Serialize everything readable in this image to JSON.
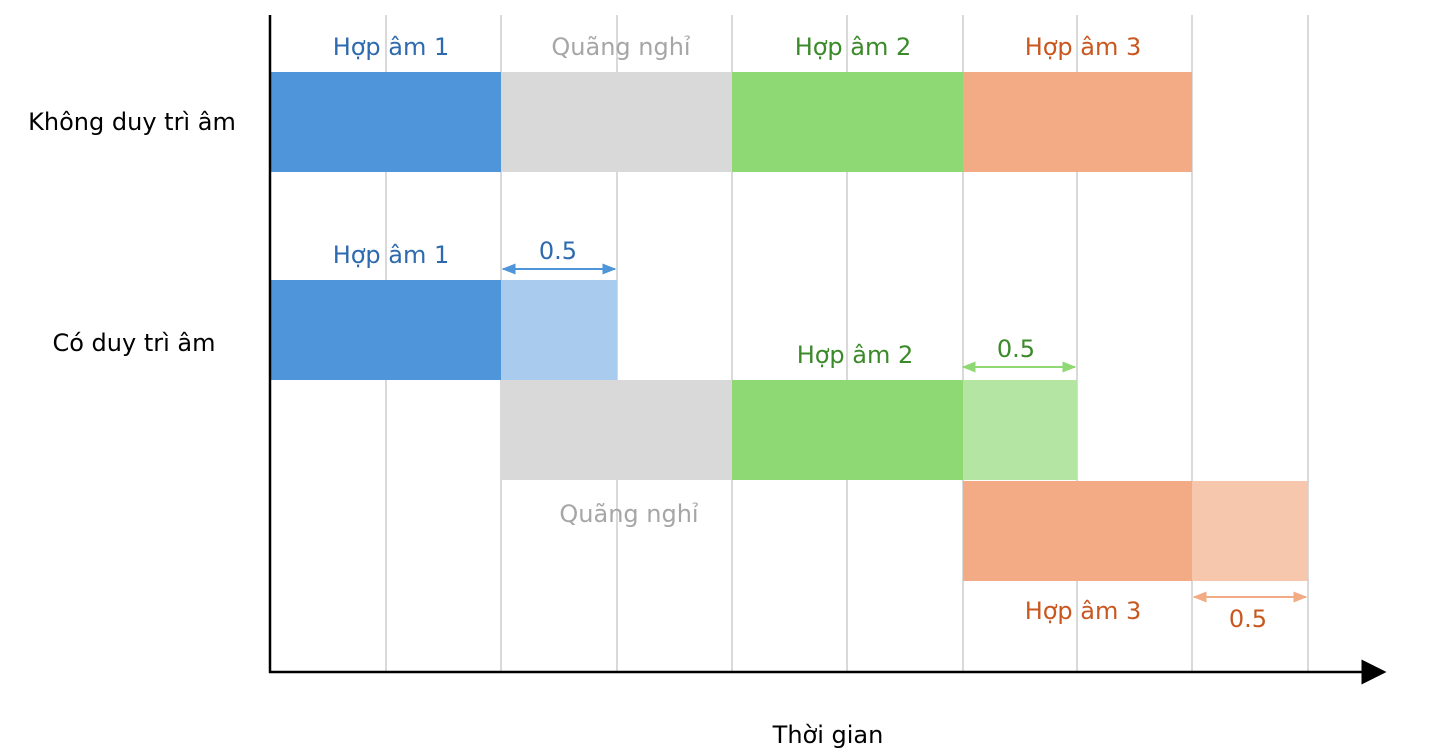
{
  "chart_data": {
    "type": "bar",
    "x_axis_label": "Thời gian",
    "unit_span_note": "each grid column = 0.5",
    "rows": [
      {
        "name": "Không duy trì âm",
        "segments": [
          {
            "label": "Hợp âm 1",
            "start": 0,
            "end": 1,
            "color": "#4f95da",
            "label_color": "#2e6aad"
          },
          {
            "label": "Quãng nghỉ",
            "start": 1,
            "end": 2,
            "color": "#d9d9d9",
            "label_color": "#a6a6a6"
          },
          {
            "label": "Hợp âm 2",
            "start": 2,
            "end": 3,
            "color": "#8fd974",
            "label_color": "#3b8a2a"
          },
          {
            "label": "Hợp âm 3",
            "start": 3,
            "end": 4,
            "color": "#f2ab84",
            "label_color": "#c8581f"
          }
        ]
      },
      {
        "name": "Có duy trì âm",
        "segments": [
          {
            "label": "Hợp âm 1",
            "start": 0,
            "end": 1,
            "sustain": 0.5,
            "color": "#4f95da",
            "sustain_color": "#a9cbee",
            "label_color": "#2e6aad",
            "sustain_label": "0.5"
          },
          {
            "label": "Quãng nghỉ",
            "start": 1,
            "end": 2,
            "color": "#d9d9d9",
            "label_color": "#a6a6a6"
          },
          {
            "label": "Hợp âm 2",
            "start": 2,
            "end": 3,
            "sustain": 0.5,
            "color": "#8fd974",
            "sustain_color": "#b5e5a2",
            "label_color": "#3b8a2a",
            "sustain_label": "0.5"
          },
          {
            "label": "Hợp âm 3",
            "start": 3,
            "end": 4,
            "sustain": 0.5,
            "color": "#f2ab84",
            "sustain_color": "#f6c7ad",
            "label_color": "#c8581f",
            "sustain_label": "0.5"
          }
        ]
      }
    ],
    "arrow_colors": {
      "blue": "#4f95da",
      "green": "#8fd974",
      "orange": "#f2ab84"
    }
  }
}
